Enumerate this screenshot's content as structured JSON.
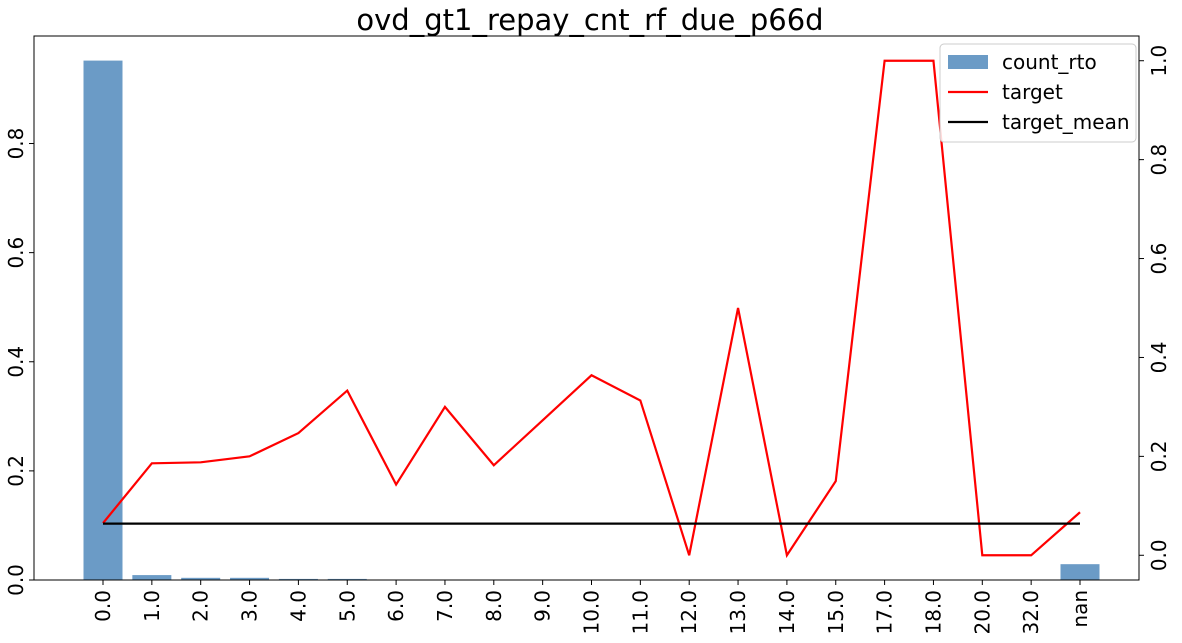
{
  "chart_data": {
    "type": "bar",
    "title": "ovd_gt1_repay_cnt_rf_due_p66d",
    "xlabel": "",
    "ylabel": "",
    "categories": [
      "0.0",
      "1.0",
      "2.0",
      "3.0",
      "4.0",
      "5.0",
      "6.0",
      "7.0",
      "8.0",
      "9.0",
      "10.0",
      "11.0",
      "12.0",
      "13.0",
      "14.0",
      "15.0",
      "17.0",
      "18.0",
      "20.0",
      "32.0",
      "nan"
    ],
    "left_axis": {
      "ylim": [
        0,
        1.0
      ],
      "ticks": [
        "0.0",
        "0.2",
        "0.4",
        "0.6",
        "0.8"
      ]
    },
    "right_axis": {
      "ylim": [
        -0.05,
        1.05
      ],
      "ticks": [
        "0.0",
        "0.2",
        "0.4",
        "0.6",
        "0.8",
        "1.0"
      ]
    },
    "series": [
      {
        "name": "count_rto",
        "kind": "bar",
        "axis": "left",
        "color": "#6b9bc6",
        "values": [
          0.952,
          0.009,
          0.004,
          0.004,
          0.002,
          0.002,
          0.0005,
          0.0004,
          0.0003,
          0.0003,
          0.0002,
          0.0002,
          0.0001,
          0.0001,
          0.0001,
          0.0001,
          0.0001,
          0.0001,
          0.0001,
          0.0001,
          0.029
        ]
      },
      {
        "name": "target",
        "kind": "line",
        "axis": "right",
        "color": "#ff0000",
        "values": [
          0.065,
          0.186,
          0.188,
          0.2,
          0.247,
          0.333,
          0.143,
          0.3,
          0.182,
          0.273,
          0.364,
          0.313,
          0.0,
          0.5,
          0.0,
          0.15,
          1.0,
          1.0,
          0.0,
          0.0,
          0.087
        ]
      },
      {
        "name": "target_mean",
        "kind": "line",
        "axis": "right",
        "color": "#000000",
        "values": [
          0.064,
          0.064,
          0.064,
          0.064,
          0.064,
          0.064,
          0.064,
          0.064,
          0.064,
          0.064,
          0.064,
          0.064,
          0.064,
          0.064,
          0.064,
          0.064,
          0.064,
          0.064,
          0.064,
          0.064,
          0.064
        ]
      }
    ],
    "legend_position": "top-right",
    "grid": false
  }
}
